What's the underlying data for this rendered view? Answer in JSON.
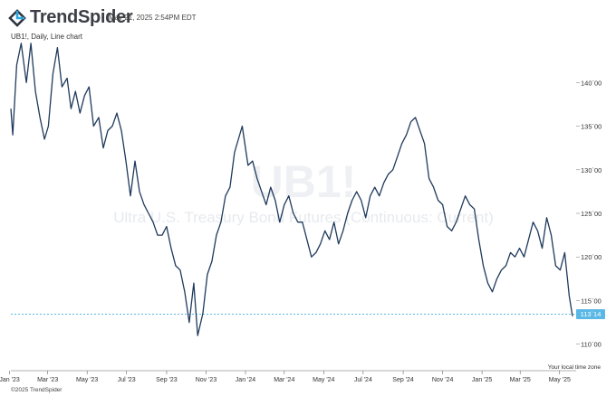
{
  "brand": {
    "logo_text": "TrendSpider",
    "icon": "trendspider-logo-icon"
  },
  "timestamp": "May 21, 2025 2:54PM EDT",
  "chart_subtitle": "UB1!, Daily, Line chart",
  "watermark": {
    "symbol": "UB1!",
    "description": "Ultra U.S. Treasury Bond Futures (Continuous: Current)"
  },
  "footer": {
    "copyright": "©2025 TrendSpider",
    "timezone_note": "Your local time zone"
  },
  "colors": {
    "line": "#1f3a5c",
    "last_price_line": "#5bb8e6",
    "last_price_badge": "#5bb8e6",
    "grid": "none",
    "background": "#ffffff"
  },
  "chart_data": {
    "type": "line",
    "symbol": "UB1!",
    "interval": "Daily",
    "x": [
      "2023-01-03",
      "2023-01-06",
      "2023-01-12",
      "2023-01-19",
      "2023-01-27",
      "2023-02-03",
      "2023-02-10",
      "2023-02-17",
      "2023-02-24",
      "2023-03-02",
      "2023-03-09",
      "2023-03-16",
      "2023-03-23",
      "2023-03-31",
      "2023-04-06",
      "2023-04-13",
      "2023-04-20",
      "2023-04-27",
      "2023-05-04",
      "2023-05-11",
      "2023-05-19",
      "2023-05-26",
      "2023-06-02",
      "2023-06-09",
      "2023-06-16",
      "2023-06-23",
      "2023-06-30",
      "2023-07-07",
      "2023-07-14",
      "2023-07-21",
      "2023-07-28",
      "2023-08-04",
      "2023-08-11",
      "2023-08-18",
      "2023-08-25",
      "2023-09-01",
      "2023-09-08",
      "2023-09-15",
      "2023-09-22",
      "2023-09-29",
      "2023-10-06",
      "2023-10-13",
      "2023-10-19",
      "2023-10-27",
      "2023-11-03",
      "2023-11-10",
      "2023-11-17",
      "2023-11-24",
      "2023-12-01",
      "2023-12-08",
      "2023-12-15",
      "2023-12-27",
      "2024-01-05",
      "2024-01-12",
      "2024-01-19",
      "2024-01-26",
      "2024-02-02",
      "2024-02-09",
      "2024-02-16",
      "2024-02-23",
      "2024-03-01",
      "2024-03-08",
      "2024-03-15",
      "2024-03-22",
      "2024-03-29",
      "2024-04-05",
      "2024-04-12",
      "2024-04-19",
      "2024-04-26",
      "2024-05-03",
      "2024-05-10",
      "2024-05-17",
      "2024-05-24",
      "2024-05-31",
      "2024-06-07",
      "2024-06-14",
      "2024-06-21",
      "2024-06-28",
      "2024-07-05",
      "2024-07-12",
      "2024-07-19",
      "2024-07-26",
      "2024-08-02",
      "2024-08-09",
      "2024-08-16",
      "2024-08-23",
      "2024-08-30",
      "2024-09-06",
      "2024-09-13",
      "2024-09-20",
      "2024-09-27",
      "2024-10-04",
      "2024-10-11",
      "2024-10-18",
      "2024-10-25",
      "2024-11-01",
      "2024-11-08",
      "2024-11-15",
      "2024-11-22",
      "2024-11-29",
      "2024-12-06",
      "2024-12-13",
      "2024-12-20",
      "2024-12-27",
      "2025-01-03",
      "2025-01-10",
      "2025-01-17",
      "2025-01-24",
      "2025-01-31",
      "2025-02-07",
      "2025-02-14",
      "2025-02-21",
      "2025-02-28",
      "2025-03-07",
      "2025-03-14",
      "2025-03-21",
      "2025-03-28",
      "2025-04-04",
      "2025-04-11",
      "2025-04-18",
      "2025-04-25",
      "2025-05-02",
      "2025-05-09",
      "2025-05-16",
      "2025-05-21"
    ],
    "values": [
      137.0,
      134.0,
      142.0,
      144.5,
      140.0,
      144.5,
      139.0,
      136.0,
      133.5,
      135.0,
      141.0,
      144.0,
      139.5,
      140.5,
      137.0,
      139.0,
      136.5,
      138.5,
      139.5,
      135.0,
      136.0,
      132.5,
      134.5,
      135.0,
      136.5,
      134.5,
      131.0,
      127.0,
      131.0,
      127.5,
      126.0,
      125.0,
      124.0,
      122.5,
      122.5,
      123.5,
      121.0,
      119.0,
      118.5,
      116.0,
      112.5,
      117.0,
      111.0,
      113.5,
      118.0,
      119.5,
      122.5,
      124.0,
      127.0,
      128.0,
      132.0,
      135.0,
      130.5,
      131.0,
      129.0,
      127.5,
      126.0,
      128.0,
      126.5,
      124.0,
      126.0,
      127.0,
      125.0,
      124.0,
      124.0,
      122.0,
      120.0,
      120.5,
      121.5,
      123.0,
      122.0,
      124.0,
      121.5,
      123.0,
      125.0,
      126.5,
      127.5,
      126.5,
      124.5,
      127.0,
      128.0,
      127.0,
      128.5,
      129.5,
      130.0,
      131.5,
      133.0,
      134.0,
      135.5,
      136.0,
      134.5,
      133.0,
      129.0,
      128.0,
      126.5,
      126.0,
      123.5,
      123.0,
      124.0,
      125.5,
      127.0,
      126.0,
      125.5,
      122.0,
      119.0,
      117.0,
      116.0,
      117.5,
      118.5,
      119.0,
      120.5,
      120.0,
      121.0,
      120.0,
      122.0,
      124.0,
      123.0,
      121.0,
      124.5,
      122.5,
      119.0,
      118.5,
      120.5,
      115.5,
      113.2
    ],
    "x_ticks": [
      "Jan '23",
      "Mar '23",
      "May '23",
      "Jul '23",
      "Sep '23",
      "Nov '23",
      "Jan '24",
      "Mar '24",
      "May '24",
      "Jul '24",
      "Sep '24",
      "Nov '24",
      "Jan '25",
      "Mar '25",
      "May '25"
    ],
    "y_ticks": [
      "140`00",
      "135`00",
      "130`00",
      "125`00",
      "120`00",
      "115`00",
      "110`00"
    ],
    "y_tick_values": [
      140,
      135,
      130,
      125,
      120,
      115,
      110
    ],
    "ylim": [
      108.0,
      144.8
    ],
    "last_price": {
      "value": 113.4375,
      "label": "113`14"
    },
    "grid": false
  }
}
